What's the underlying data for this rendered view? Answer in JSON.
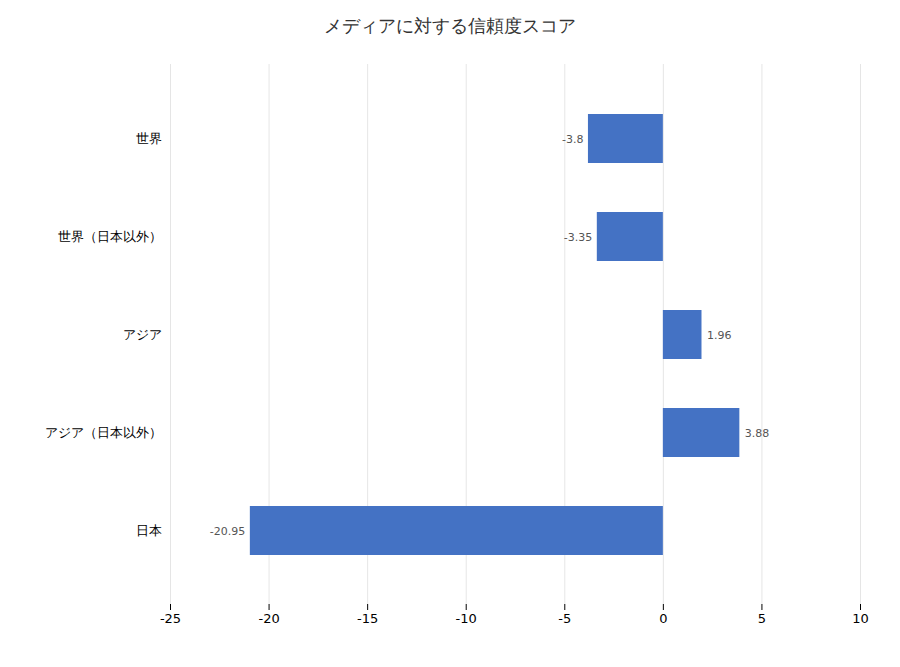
{
  "chart_data": {
    "type": "bar",
    "orientation": "horizontal",
    "title": "メディアに対する信頼度スコア",
    "categories": [
      "世界",
      "世界（日本以外）",
      "アジア",
      "アジア（日本以外）",
      "日本"
    ],
    "values": [
      -3.8,
      -3.35,
      1.96,
      3.88,
      -20.95
    ],
    "color": "#4472C4",
    "xlim": [
      -25,
      10
    ],
    "xticks": [
      -25,
      -20,
      -15,
      -10,
      -5,
      0,
      5,
      10
    ],
    "grid": true,
    "data_labels": true
  }
}
